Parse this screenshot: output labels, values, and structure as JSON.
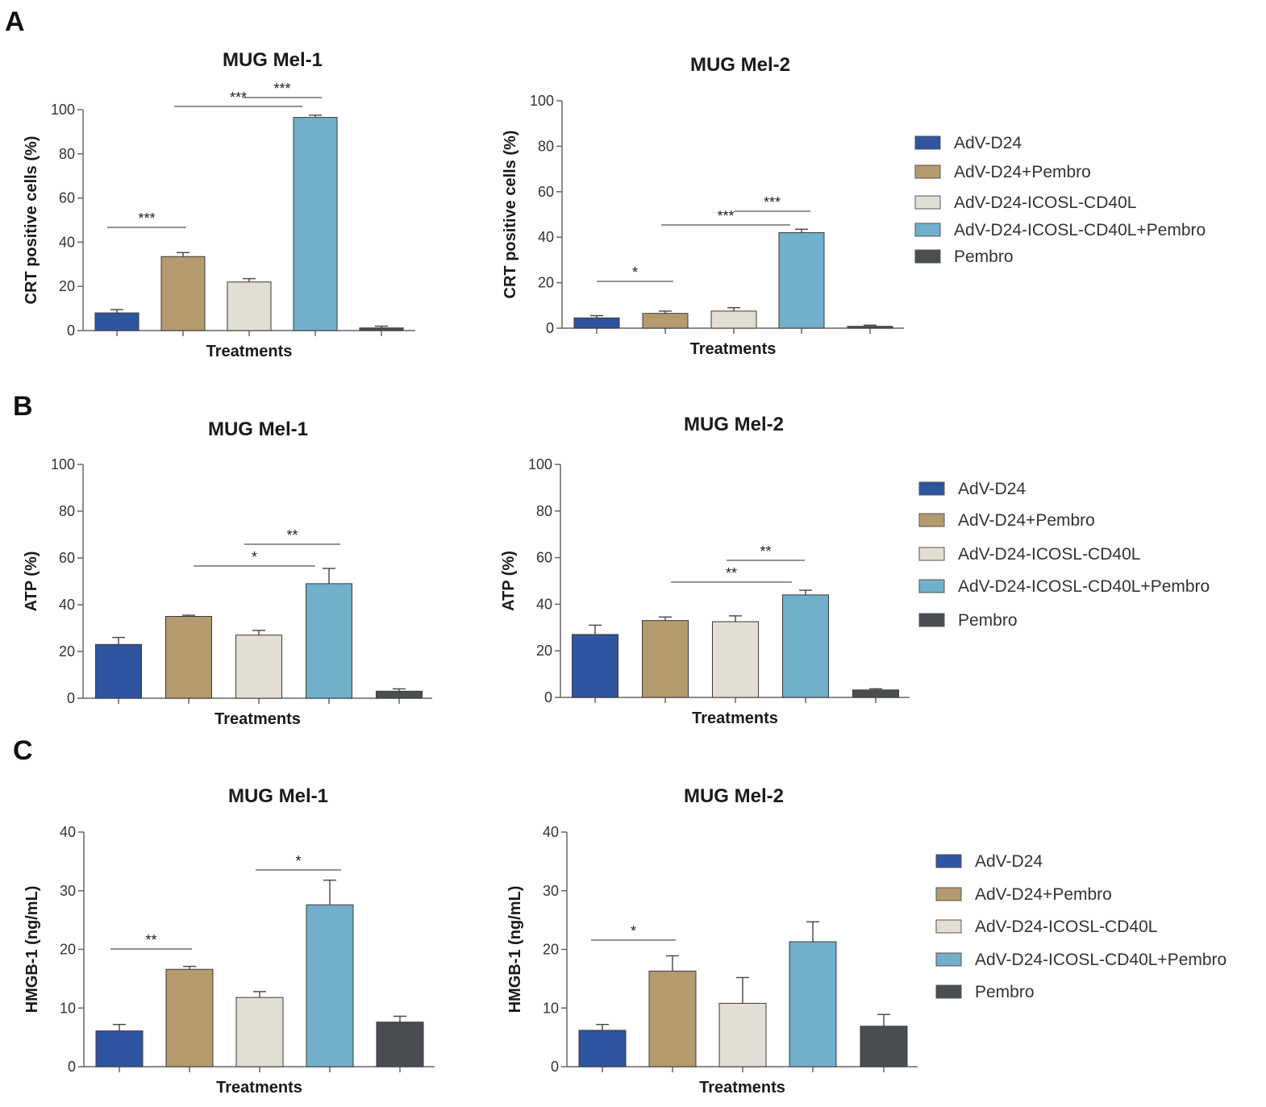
{
  "colors": {
    "AdV-D24": "#2f54a0",
    "AdV-D24+Pembro": "#b59a6e",
    "AdV-D24-ICOSL-CD40L": "#e2ded4",
    "AdV-D24-ICOSL-CD40L+Pembro": "#71afca",
    "Pembro": "#4a4d52"
  },
  "panels": [
    {
      "label": "A"
    },
    {
      "label": "B"
    },
    {
      "label": "C"
    }
  ],
  "legend": {
    "entries": [
      "AdV-D24",
      "AdV-D24+Pembro",
      "AdV-D24-ICOSL-CD40L",
      "AdV-D24-ICOSL-CD40L+Pembro",
      "Pembro"
    ]
  },
  "chart_data": [
    {
      "type": "bar",
      "panel": "A",
      "title": "MUG Mel-1",
      "xlabel": "Treatments",
      "ylabel": "CRT positive cells (%)",
      "ylim": [
        0,
        100
      ],
      "yticks": [
        "0",
        "20",
        "40",
        "60",
        "80",
        "100"
      ],
      "categories": [
        "AdV-D24",
        "AdV-D24+Pembro",
        "AdV-D24-ICOSL-CD40L",
        "AdV-D24-ICOSL-CD40L+Pembro",
        "Pembro"
      ],
      "values": [
        8,
        33.5,
        22,
        96.5,
        1.2
      ],
      "errors": [
        1.5,
        1.8,
        1.5,
        1,
        0.8
      ],
      "significance": [
        {
          "from": 0,
          "to": 1,
          "label": "***"
        },
        {
          "from": 1,
          "to": 3,
          "label": "***"
        },
        {
          "from": 2,
          "to": 3,
          "label": "***"
        }
      ]
    },
    {
      "type": "bar",
      "panel": "A",
      "title": "MUG Mel-2",
      "xlabel": "Treatments",
      "ylabel": "CRT positive cells (%)",
      "ylim": [
        0,
        100
      ],
      "yticks": [
        "0",
        "20",
        "40",
        "60",
        "80",
        "100"
      ],
      "categories": [
        "AdV-D24",
        "AdV-D24+Pembro",
        "AdV-D24-ICOSL-CD40L",
        "AdV-D24-ICOSL-CD40L+Pembro",
        "Pembro"
      ],
      "values": [
        4.5,
        6.5,
        7.5,
        42,
        0.8
      ],
      "errors": [
        1,
        1,
        1.5,
        1.5,
        0.5
      ],
      "significance": [
        {
          "from": 0,
          "to": 1,
          "label": "*"
        },
        {
          "from": 1,
          "to": 3,
          "label": "***"
        },
        {
          "from": 2,
          "to": 3,
          "label": "***"
        }
      ]
    },
    {
      "type": "bar",
      "panel": "B",
      "title": "MUG Mel-1",
      "xlabel": "Treatments",
      "ylabel": "ATP (%)",
      "ylim": [
        0,
        100
      ],
      "yticks": [
        "0",
        "20",
        "40",
        "60",
        "80",
        "100"
      ],
      "categories": [
        "AdV-D24",
        "AdV-D24+Pembro",
        "AdV-D24-ICOSL-CD40L",
        "AdV-D24-ICOSL-CD40L+Pembro",
        "Pembro"
      ],
      "values": [
        23,
        35,
        27,
        49,
        3
      ],
      "errors": [
        3,
        0.5,
        2,
        6.5,
        1
      ],
      "significance": [
        {
          "from": 1,
          "to": 3,
          "label": "*"
        },
        {
          "from": 2,
          "to": 3,
          "label": "**"
        }
      ]
    },
    {
      "type": "bar",
      "panel": "B",
      "title": "MUG Mel-2",
      "xlabel": "Treatments",
      "ylabel": "ATP (%)",
      "ylim": [
        0,
        100
      ],
      "yticks": [
        "0",
        "20",
        "40",
        "60",
        "80",
        "100"
      ],
      "categories": [
        "AdV-D24",
        "AdV-D24+Pembro",
        "AdV-D24-ICOSL-CD40L",
        "AdV-D24-ICOSL-CD40L+Pembro",
        "Pembro"
      ],
      "values": [
        27,
        33,
        32.5,
        44,
        3.2
      ],
      "errors": [
        4,
        1.5,
        2.5,
        2,
        0.5
      ],
      "significance": [
        {
          "from": 1,
          "to": 3,
          "label": "**"
        },
        {
          "from": 2,
          "to": 3,
          "label": "**"
        }
      ]
    },
    {
      "type": "bar",
      "panel": "C",
      "title": "MUG Mel-1",
      "xlabel": "Treatments",
      "ylabel": "HMGB-1 (ng/mL)",
      "ylim": [
        0,
        40
      ],
      "yticks": [
        "0",
        "10",
        "20",
        "30",
        "40"
      ],
      "categories": [
        "AdV-D24",
        "AdV-D24+Pembro",
        "AdV-D24-ICOSL-CD40L",
        "AdV-D24-ICOSL-CD40L+Pembro",
        "Pembro"
      ],
      "values": [
        6.1,
        16.6,
        11.8,
        27.6,
        7.6
      ],
      "errors": [
        1.1,
        0.5,
        1,
        4.2,
        1
      ],
      "significance": [
        {
          "from": 0,
          "to": 1,
          "label": "**"
        },
        {
          "from": 2,
          "to": 3,
          "label": "*"
        }
      ]
    },
    {
      "type": "bar",
      "panel": "C",
      "title": "MUG Mel-2",
      "xlabel": "Treatments",
      "ylabel": "HMGB-1 (ng/mL)",
      "ylim": [
        0,
        40
      ],
      "yticks": [
        "0",
        "10",
        "20",
        "30",
        "40"
      ],
      "categories": [
        "AdV-D24",
        "AdV-D24+Pembro",
        "AdV-D24-ICOSL-CD40L",
        "AdV-D24-ICOSL-CD40L+Pembro",
        "Pembro"
      ],
      "values": [
        6.2,
        16.3,
        10.8,
        21.3,
        6.9
      ],
      "errors": [
        1,
        2.6,
        4.4,
        3.4,
        2
      ],
      "significance": [
        {
          "from": 0,
          "to": 1,
          "label": "*"
        }
      ]
    }
  ]
}
